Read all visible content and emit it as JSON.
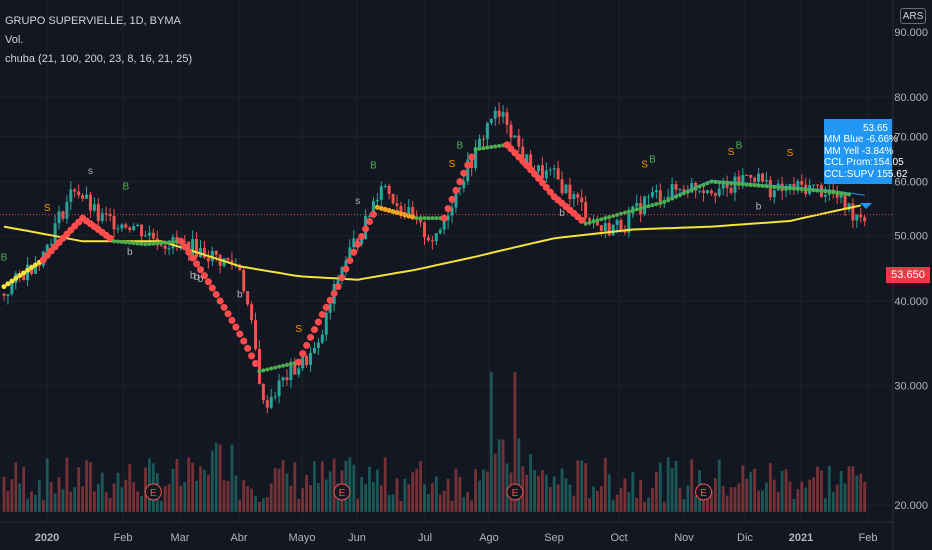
{
  "header": {
    "symbol_line": "GRUPO SUPERVIELLE, 1D, BYMA",
    "volume_label": "Vol.",
    "indicator_label": "chuba (21, 100, 200, 23, 8, 16, 21, 25)"
  },
  "currency_button": "ARS",
  "last_price_label": "53.650",
  "tooltip": {
    "lines": [
      "53.65",
      "MM Blue -6.66%",
      "MM Yell -3.84%",
      "CCL Prom:154.05",
      "CCL:SUPV 155.62"
    ]
  },
  "colors": {
    "background": "#131722",
    "grid": "#1e222d",
    "up": "#26a69a",
    "down": "#ef5350",
    "ma_yellow": "#f6e33b",
    "ma_red": "#ff4d4d",
    "ma_green": "#4caf50",
    "ma_orange": "#f5a623",
    "blue_line": "#2196f3",
    "last_price": "#f23645",
    "tooltip": "#2196f3"
  },
  "chart_data": {
    "type": "candlestick",
    "title": "GRUPO SUPERVIELLE, 1D, BYMA",
    "y_axis": {
      "ticks": [
        20,
        30,
        40,
        50,
        60,
        70,
        80
      ],
      "ticks_text": [
        "20.000",
        "30.000",
        "40.000",
        "50.000",
        "60.000",
        "70.000",
        "80.000"
      ],
      "top_tick_text": "90.000",
      "range": [
        18,
        92
      ],
      "scale": "log"
    },
    "x_axis": {
      "ticks": [
        "2020",
        "Feb",
        "Mar",
        "Abr",
        "Mayo",
        "Jun",
        "Jul",
        "Ago",
        "Sep",
        "Oct",
        "Nov",
        "Dic",
        "2021",
        "Feb"
      ]
    },
    "price_anchors": [
      [
        0,
        41
      ],
      [
        10,
        47
      ],
      [
        18,
        59
      ],
      [
        24,
        53
      ],
      [
        32,
        52
      ],
      [
        40,
        49
      ],
      [
        48,
        48
      ],
      [
        55,
        46
      ],
      [
        60,
        45
      ],
      [
        66,
        28
      ],
      [
        72,
        31
      ],
      [
        80,
        34
      ],
      [
        86,
        45
      ],
      [
        92,
        52
      ],
      [
        96,
        60
      ],
      [
        100,
        56
      ],
      [
        106,
        51
      ],
      [
        110,
        49
      ],
      [
        116,
        60
      ],
      [
        120,
        66
      ],
      [
        124,
        75
      ],
      [
        128,
        74
      ],
      [
        132,
        65
      ],
      [
        136,
        62
      ],
      [
        140,
        61
      ],
      [
        146,
        56
      ],
      [
        152,
        51
      ],
      [
        158,
        52
      ],
      [
        164,
        57
      ],
      [
        170,
        58
      ],
      [
        174,
        59
      ],
      [
        180,
        59
      ],
      [
        184,
        58
      ],
      [
        190,
        62
      ],
      [
        196,
        58
      ],
      [
        204,
        59
      ],
      [
        210,
        58
      ],
      [
        216,
        54
      ],
      [
        219,
        53.65
      ]
    ],
    "ma_yellow_anchors": [
      [
        0,
        51.5
      ],
      [
        20,
        49
      ],
      [
        40,
        49
      ],
      [
        50,
        47
      ],
      [
        60,
        45
      ],
      [
        75,
        43.5
      ],
      [
        90,
        43
      ],
      [
        105,
        44.5
      ],
      [
        120,
        46.5
      ],
      [
        140,
        49.5
      ],
      [
        160,
        51
      ],
      [
        180,
        51.5
      ],
      [
        200,
        52.5
      ],
      [
        219,
        55.5
      ]
    ],
    "ma_fast_anchors": [
      [
        0,
        42
      ],
      [
        10,
        46
      ],
      [
        20,
        53
      ],
      [
        28,
        49
      ],
      [
        36,
        48.5
      ],
      [
        45,
        49
      ],
      [
        55,
        40
      ],
      [
        65,
        31.5
      ],
      [
        75,
        32.5
      ],
      [
        85,
        42
      ],
      [
        95,
        55
      ],
      [
        105,
        53
      ],
      [
        112,
        53
      ],
      [
        120,
        67
      ],
      [
        128,
        68
      ],
      [
        140,
        57
      ],
      [
        148,
        52
      ],
      [
        158,
        54
      ],
      [
        168,
        56
      ],
      [
        180,
        60
      ],
      [
        195,
        59
      ],
      [
        210,
        58
      ],
      [
        219,
        57
      ]
    ],
    "signals": [
      {
        "x": 0,
        "text": "B",
        "kind": "buy"
      },
      {
        "x": 11,
        "text": "S",
        "kind": "sell"
      },
      {
        "x": 22,
        "text": "s",
        "kind": "s_small"
      },
      {
        "x": 31,
        "text": "B",
        "kind": "buy"
      },
      {
        "x": 32,
        "text": "b",
        "kind": "b_small"
      },
      {
        "x": 48,
        "text": "b",
        "kind": "b_small"
      },
      {
        "x": 49,
        "text": "b",
        "kind": "b_small"
      },
      {
        "x": 50,
        "text": "b",
        "kind": "b_small"
      },
      {
        "x": 60,
        "text": "b",
        "kind": "b_small"
      },
      {
        "x": 75,
        "text": "S",
        "kind": "sell"
      },
      {
        "x": 90,
        "text": "s",
        "kind": "s_small"
      },
      {
        "x": 94,
        "text": "B",
        "kind": "buy"
      },
      {
        "x": 114,
        "text": "S",
        "kind": "sell"
      },
      {
        "x": 116,
        "text": "B",
        "kind": "buy"
      },
      {
        "x": 142,
        "text": "b",
        "kind": "b_small"
      },
      {
        "x": 163,
        "text": "S",
        "kind": "sell"
      },
      {
        "x": 165,
        "text": "B",
        "kind": "buy"
      },
      {
        "x": 185,
        "text": "S",
        "kind": "sell"
      },
      {
        "x": 187,
        "text": "B",
        "kind": "buy"
      },
      {
        "x": 192,
        "text": "b",
        "kind": "b_small"
      },
      {
        "x": 200,
        "text": "S",
        "kind": "sell"
      }
    ],
    "earnings_markers": [
      {
        "x": 38,
        "text": "E"
      },
      {
        "x": 86,
        "text": "E"
      },
      {
        "x": 130,
        "text": "E"
      },
      {
        "x": 178,
        "text": "E"
      }
    ],
    "last_price": 53.65
  }
}
